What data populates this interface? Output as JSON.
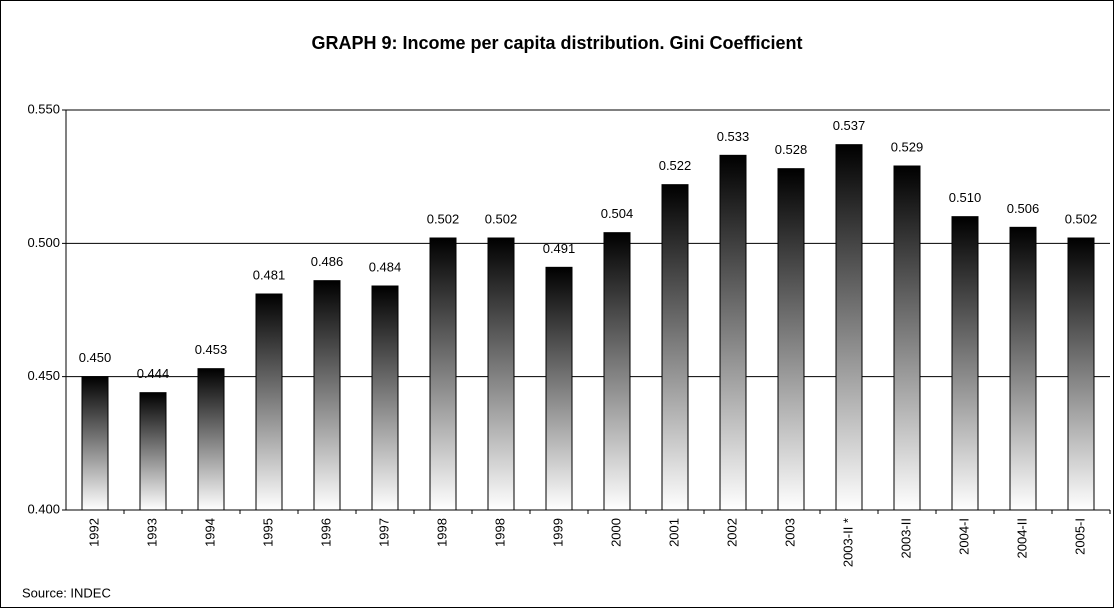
{
  "chart_data": {
    "type": "bar",
    "title": "GRAPH 9: Income per capita distribution. Gini Coefficient",
    "source": "Source: INDEC",
    "categories": [
      "1992",
      "1993",
      "1994",
      "1995",
      "1996",
      "1997",
      "1998",
      "1998",
      "1999",
      "2000",
      "2001",
      "2002",
      "2003",
      "2003-II *",
      "2003-II",
      "2004-I",
      "2004-II",
      "2005-I"
    ],
    "values": [
      0.45,
      0.444,
      0.453,
      0.481,
      0.486,
      0.484,
      0.502,
      0.502,
      0.491,
      0.504,
      0.522,
      0.533,
      0.528,
      0.537,
      0.529,
      0.51,
      0.506,
      0.502
    ],
    "value_labels": [
      "0.450",
      "0.444",
      "0.453",
      "0.481",
      "0.486",
      "0.484",
      "0.502",
      "0.502",
      "0.491",
      "0.504",
      "0.522",
      "0.533",
      "0.528",
      "0.537",
      "0.529",
      "0.510",
      "0.506",
      "0.502"
    ],
    "color": "#000000",
    "ylim": [
      0.4,
      0.55
    ],
    "yticks": [
      {
        "value": 0.4,
        "label": "0.400"
      },
      {
        "value": 0.45,
        "label": "0.450"
      },
      {
        "value": 0.5,
        "label": "0.500"
      },
      {
        "value": 0.55,
        "label": "0.550"
      }
    ],
    "grid": true
  }
}
